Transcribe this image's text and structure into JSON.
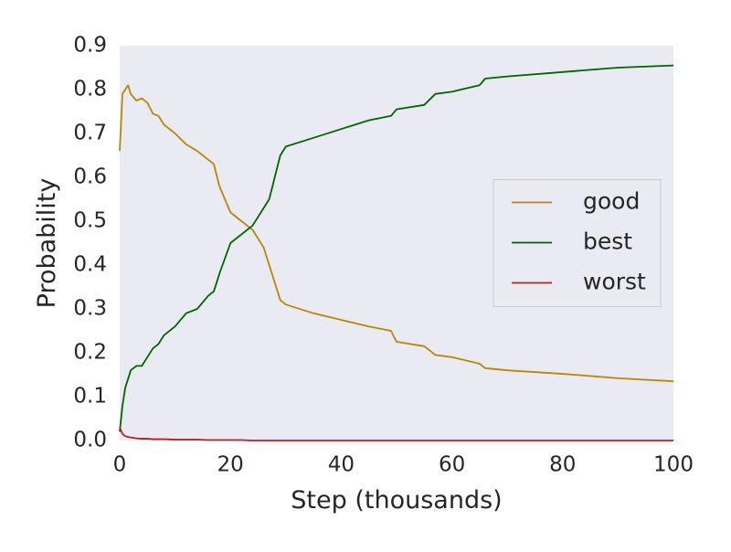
{
  "chart_data": {
    "type": "line",
    "xlabel": "Step (thousands)",
    "ylabel": "Probability",
    "x": [
      0,
      0.5,
      1,
      1.5,
      2,
      3,
      4,
      5,
      6,
      7,
      8,
      10,
      12,
      14,
      16,
      17,
      18,
      20,
      22,
      24,
      25,
      26,
      27,
      28,
      29,
      30,
      35,
      40,
      45,
      49,
      50,
      55,
      57,
      60,
      65,
      66,
      70,
      80,
      90,
      100
    ],
    "series": [
      {
        "name": "good",
        "color": "#b8860b",
        "values": [
          0.66,
          0.79,
          0.8,
          0.81,
          0.79,
          0.775,
          0.78,
          0.77,
          0.745,
          0.74,
          0.72,
          0.7,
          0.675,
          0.66,
          0.64,
          0.63,
          0.58,
          0.52,
          0.5,
          0.48,
          0.46,
          0.44,
          0.4,
          0.36,
          0.32,
          0.31,
          0.29,
          0.275,
          0.26,
          0.25,
          0.225,
          0.215,
          0.195,
          0.19,
          0.175,
          0.165,
          0.16,
          0.152,
          0.142,
          0.135
        ]
      },
      {
        "name": "best",
        "color": "#006400",
        "values": [
          0.02,
          0.08,
          0.12,
          0.14,
          0.16,
          0.17,
          0.17,
          0.19,
          0.21,
          0.22,
          0.24,
          0.26,
          0.29,
          0.3,
          0.33,
          0.34,
          0.38,
          0.45,
          0.47,
          0.49,
          0.51,
          0.53,
          0.55,
          0.6,
          0.65,
          0.67,
          0.69,
          0.71,
          0.73,
          0.74,
          0.755,
          0.765,
          0.79,
          0.795,
          0.81,
          0.825,
          0.83,
          0.84,
          0.85,
          0.855
        ]
      },
      {
        "name": "worst",
        "color": "#b22222",
        "values": [
          0.03,
          0.015,
          0.01,
          0.008,
          0.007,
          0.005,
          0.004,
          0.004,
          0.003,
          0.003,
          0.003,
          0.002,
          0.002,
          0.002,
          0.001,
          0.001,
          0.001,
          0.001,
          0.001,
          0,
          0,
          0,
          0,
          0,
          0,
          0,
          0,
          0,
          0,
          0,
          0,
          0,
          0,
          0,
          0,
          0,
          0,
          0,
          0,
          0
        ]
      }
    ],
    "xlim": [
      0,
      100
    ],
    "ylim": [
      0,
      0.9
    ],
    "xticks": [
      0,
      20,
      40,
      60,
      80,
      100
    ],
    "yticks": [
      {
        "value": 0,
        "label": "0.0"
      },
      0.1,
      0.2,
      0.3,
      0.4,
      0.5,
      0.6,
      0.7,
      0.8,
      0.9
    ],
    "grid": false,
    "legend": "right",
    "background": "#eaeaf2"
  }
}
